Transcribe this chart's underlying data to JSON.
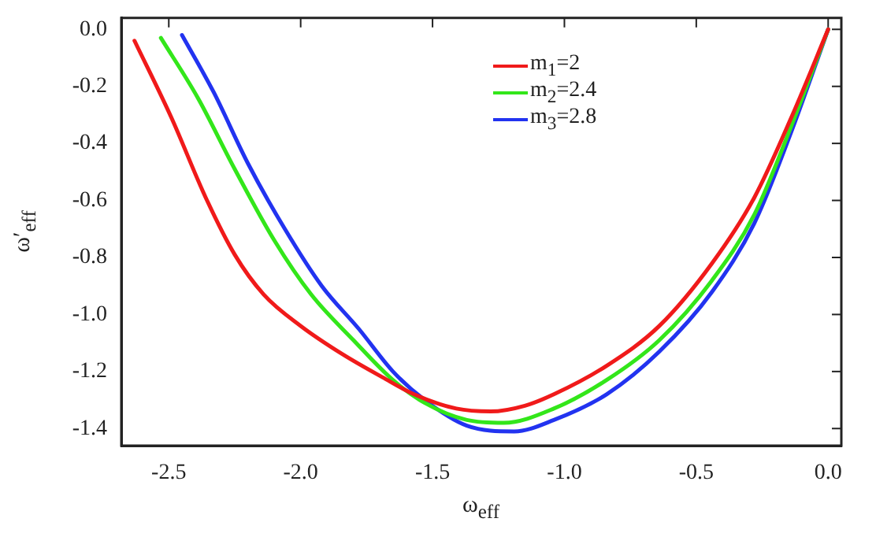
{
  "chart_data": {
    "type": "line",
    "xlabel": "ω$_{eff}$",
    "ylabel": "ω′$_{eff}$",
    "xlim": [
      -2.68,
      0.05
    ],
    "xticks": [
      {
        "value": -2.5,
        "label": "-2.5"
      },
      {
        "value": -2.0,
        "label": "-2.0"
      },
      {
        "value": -1.5,
        "label": "-1.5"
      },
      {
        "value": -1.0,
        "label": "-1.0"
      },
      {
        "value": -0.5,
        "label": "-0.5"
      },
      {
        "value": 0,
        "label": "0.0"
      }
    ],
    "ylim": [
      -1.46,
      0.04
    ],
    "yticks": [
      {
        "value": 0,
        "label": "0.0"
      },
      {
        "value": -0.2,
        "label": "-0.2"
      },
      {
        "value": -0.4,
        "label": "-0.4"
      },
      {
        "value": -0.6,
        "label": "-0.6"
      },
      {
        "value": -0.8,
        "label": "-0.8"
      },
      {
        "value": -1.0,
        "label": "-1.0"
      },
      {
        "value": -1.2,
        "label": "-1.2"
      },
      {
        "value": -1.4,
        "label": "-1.4"
      }
    ],
    "grid": false,
    "legend": "top",
    "marker": "none",
    "line_style": "solid",
    "series": [
      {
        "name": "m$_{1}$=2",
        "color": "#f01a1a",
        "x": [
          -2.63,
          -2.49,
          -2.36,
          -2.25,
          -2.14,
          -2.0,
          -1.84,
          -1.69,
          -1.57,
          -1.41,
          -1.28,
          -1.15,
          -1.04,
          -0.84,
          -0.64,
          -0.44,
          -0.28,
          -0.14,
          0
        ],
        "values": [
          -0.04,
          -0.31,
          -0.59,
          -0.79,
          -0.93,
          -1.04,
          -1.14,
          -1.22,
          -1.28,
          -1.33,
          -1.34,
          -1.32,
          -1.28,
          -1.18,
          -1.04,
          -0.82,
          -0.59,
          -0.31,
          0
        ]
      },
      {
        "name": "m$_{2}$=2.4",
        "color": "#33e61a",
        "x": [
          -2.53,
          -2.39,
          -2.25,
          -2.1,
          -1.96,
          -1.8,
          -1.65,
          -1.53,
          -1.37,
          -1.23,
          -1.04,
          -0.84,
          -0.64,
          -0.44,
          -0.28,
          -0.14,
          0
        ],
        "values": [
          -0.03,
          -0.24,
          -0.49,
          -0.74,
          -0.93,
          -1.09,
          -1.23,
          -1.31,
          -1.37,
          -1.38,
          -1.33,
          -1.23,
          -1.09,
          -0.88,
          -0.65,
          -0.34,
          0
        ]
      },
      {
        "name": "m$_{3}$=2.8",
        "color": "#2233f0",
        "x": [
          -2.45,
          -2.33,
          -2.2,
          -2.06,
          -1.92,
          -1.78,
          -1.65,
          -1.53,
          -1.37,
          -1.19,
          -1.04,
          -0.84,
          -0.64,
          -0.44,
          -0.28,
          -0.14,
          0
        ],
        "values": [
          -0.02,
          -0.22,
          -0.47,
          -0.7,
          -0.9,
          -1.05,
          -1.2,
          -1.3,
          -1.39,
          -1.41,
          -1.37,
          -1.28,
          -1.13,
          -0.92,
          -0.68,
          -0.36,
          0
        ]
      }
    ]
  }
}
